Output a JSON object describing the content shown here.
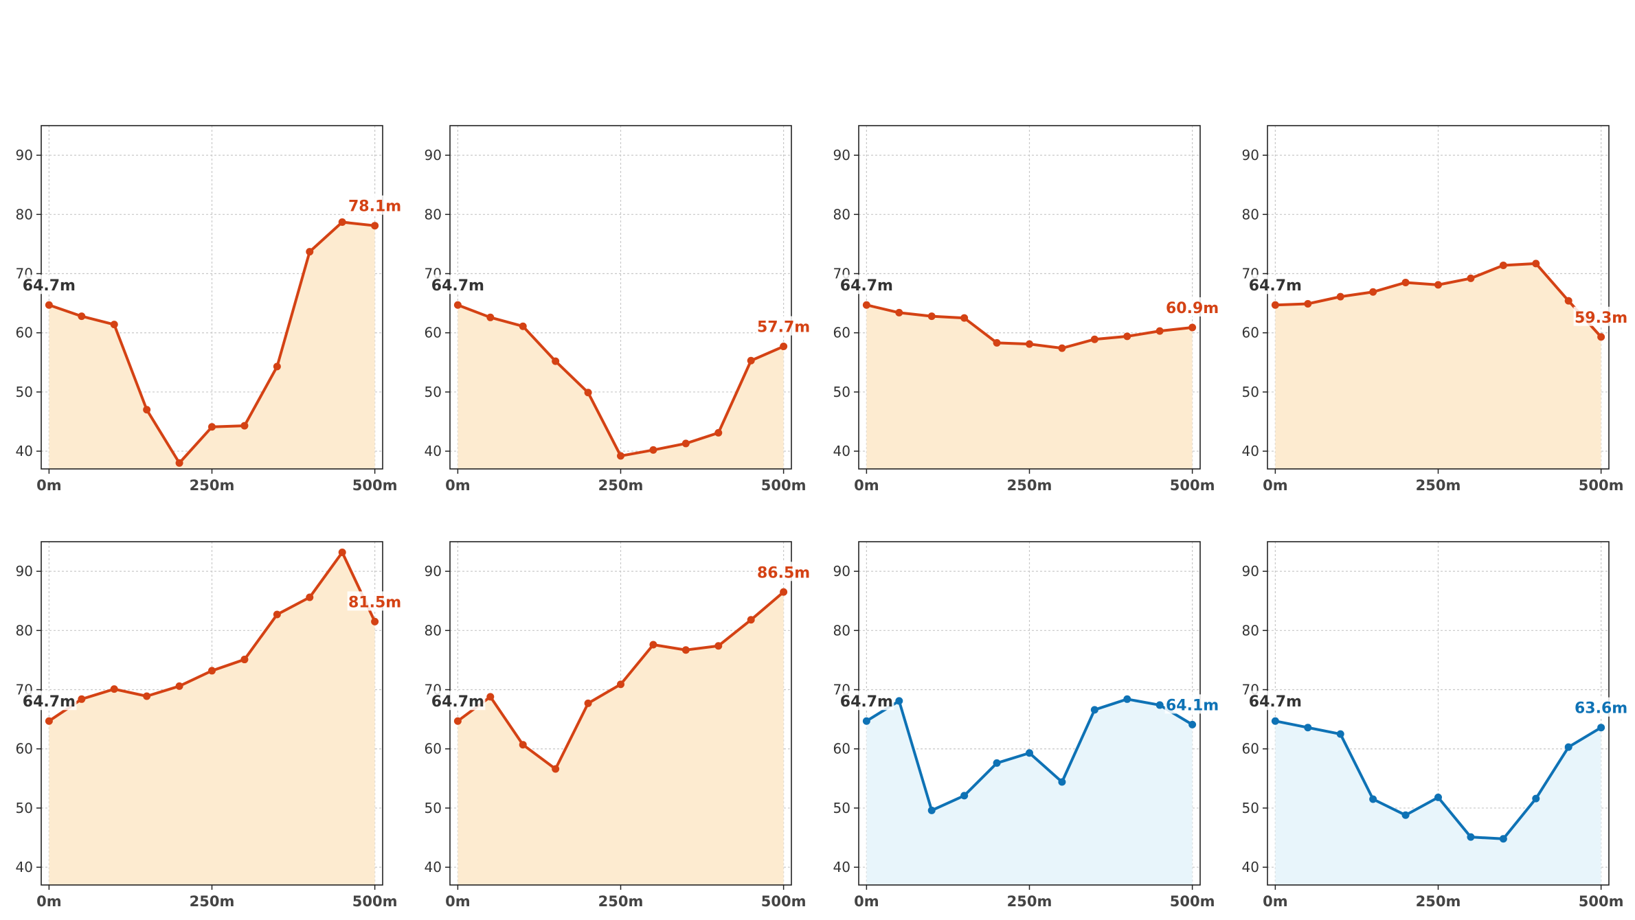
{
  "suptitle": "",
  "colors": {
    "red_line": "#d44214",
    "red_fill": "#fdebd0",
    "blue_line": "#0e72b5",
    "blue_fill": "#e8f5fb",
    "start_label": "#333333",
    "grid": "#c8c8c8",
    "axis": "#222222"
  },
  "chart_data": [
    {
      "type": "area",
      "title": "",
      "color": "red",
      "x": [
        0,
        50,
        100,
        150,
        200,
        250,
        300,
        350,
        400,
        450,
        500
      ],
      "y": [
        64.7,
        62.8,
        61.4,
        47.0,
        38.0,
        44.1,
        44.3,
        54.3,
        73.7,
        78.7,
        78.1
      ],
      "xticks": [
        0,
        250,
        500
      ],
      "xticklabels": [
        "0m",
        "250m",
        "500m"
      ],
      "yticks": [
        40,
        50,
        60,
        70,
        80,
        90
      ],
      "ylim": [
        37,
        95
      ],
      "xlim": [
        -12,
        512
      ],
      "start_label": "64.7m",
      "end_label": "78.1m",
      "grid": true
    },
    {
      "type": "area",
      "title": "",
      "color": "red",
      "x": [
        0,
        50,
        100,
        150,
        200,
        250,
        300,
        350,
        400,
        450,
        500
      ],
      "y": [
        64.7,
        62.6,
        61.1,
        55.2,
        49.9,
        39.2,
        40.2,
        41.3,
        43.1,
        55.3,
        57.7
      ],
      "xticks": [
        0,
        250,
        500
      ],
      "xticklabels": [
        "0m",
        "250m",
        "500m"
      ],
      "yticks": [
        40,
        50,
        60,
        70,
        80,
        90
      ],
      "ylim": [
        37,
        95
      ],
      "xlim": [
        -12,
        512
      ],
      "start_label": "64.7m",
      "end_label": "57.7m",
      "grid": true
    },
    {
      "type": "area",
      "title": "",
      "color": "red",
      "x": [
        0,
        50,
        100,
        150,
        200,
        250,
        300,
        350,
        400,
        450,
        500
      ],
      "y": [
        64.7,
        63.4,
        62.8,
        62.5,
        58.3,
        58.1,
        57.4,
        58.9,
        59.4,
        60.3,
        60.9
      ],
      "xticks": [
        0,
        250,
        500
      ],
      "xticklabels": [
        "0m",
        "250m",
        "500m"
      ],
      "yticks": [
        40,
        50,
        60,
        70,
        80,
        90
      ],
      "ylim": [
        37,
        95
      ],
      "xlim": [
        -12,
        512
      ],
      "start_label": "64.7m",
      "end_label": "60.9m",
      "grid": true
    },
    {
      "type": "area",
      "title": "",
      "color": "red",
      "x": [
        0,
        50,
        100,
        150,
        200,
        250,
        300,
        350,
        400,
        450,
        500
      ],
      "y": [
        64.7,
        64.9,
        66.1,
        66.9,
        68.5,
        68.1,
        69.2,
        71.4,
        71.7,
        65.4,
        59.3
      ],
      "xticks": [
        0,
        250,
        500
      ],
      "xticklabels": [
        "0m",
        "250m",
        "500m"
      ],
      "yticks": [
        40,
        50,
        60,
        70,
        80,
        90
      ],
      "ylim": [
        37,
        95
      ],
      "xlim": [
        -12,
        512
      ],
      "start_label": "64.7m",
      "end_label": "59.3m",
      "grid": true
    },
    {
      "type": "area",
      "title": "",
      "color": "red",
      "x": [
        0,
        50,
        100,
        150,
        200,
        250,
        300,
        350,
        400,
        450,
        500
      ],
      "y": [
        64.7,
        68.4,
        70.1,
        68.9,
        70.6,
        73.2,
        75.1,
        82.7,
        85.6,
        93.2,
        81.5
      ],
      "xticks": [
        0,
        250,
        500
      ],
      "xticklabels": [
        "0m",
        "250m",
        "500m"
      ],
      "yticks": [
        40,
        50,
        60,
        70,
        80,
        90
      ],
      "ylim": [
        37,
        95
      ],
      "xlim": [
        -12,
        512
      ],
      "start_label": "64.7m",
      "end_label": "81.5m",
      "grid": true
    },
    {
      "type": "area",
      "title": "",
      "color": "red",
      "x": [
        0,
        50,
        100,
        150,
        200,
        250,
        300,
        350,
        400,
        450,
        500
      ],
      "y": [
        64.7,
        68.8,
        60.7,
        56.6,
        67.7,
        70.9,
        77.6,
        76.7,
        77.4,
        81.8,
        86.5
      ],
      "xticks": [
        0,
        250,
        500
      ],
      "xticklabels": [
        "0m",
        "250m",
        "500m"
      ],
      "yticks": [
        40,
        50,
        60,
        70,
        80,
        90
      ],
      "ylim": [
        37,
        95
      ],
      "xlim": [
        -12,
        512
      ],
      "start_label": "64.7m",
      "end_label": "86.5m",
      "grid": true
    },
    {
      "type": "area",
      "title": "",
      "color": "blue",
      "x": [
        0,
        50,
        100,
        150,
        200,
        250,
        300,
        350,
        400,
        450,
        500
      ],
      "y": [
        64.7,
        68.1,
        49.6,
        52.1,
        57.6,
        59.3,
        54.4,
        66.6,
        68.4,
        67.4,
        64.1
      ],
      "xticks": [
        0,
        250,
        500
      ],
      "xticklabels": [
        "0m",
        "250m",
        "500m"
      ],
      "yticks": [
        40,
        50,
        60,
        70,
        80,
        90
      ],
      "ylim": [
        37,
        95
      ],
      "xlim": [
        -12,
        512
      ],
      "start_label": "64.7m",
      "end_label": "64.1m",
      "grid": true
    },
    {
      "type": "area",
      "title": "",
      "color": "blue",
      "x": [
        0,
        50,
        100,
        150,
        200,
        250,
        300,
        350,
        400,
        450,
        500
      ],
      "y": [
        64.7,
        63.6,
        62.5,
        51.5,
        48.8,
        51.8,
        45.1,
        44.8,
        51.6,
        60.3,
        63.6
      ],
      "xticks": [
        0,
        250,
        500
      ],
      "xticklabels": [
        "0m",
        "250m",
        "500m"
      ],
      "yticks": [
        40,
        50,
        60,
        70,
        80,
        90
      ],
      "ylim": [
        37,
        95
      ],
      "xlim": [
        -12,
        512
      ],
      "start_label": "64.7m",
      "end_label": "63.6m",
      "grid": true
    }
  ]
}
